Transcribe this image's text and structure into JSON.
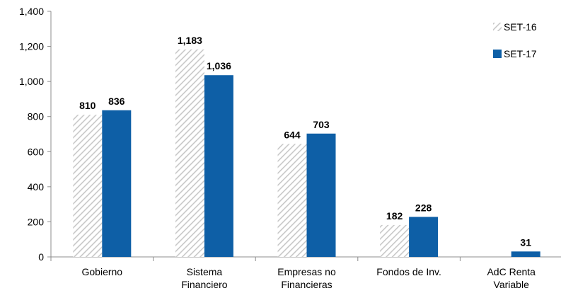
{
  "chart_data": {
    "type": "bar",
    "title": "",
    "xlabel": "",
    "ylabel": "",
    "ylim": [
      0,
      1400
    ],
    "yticks": [
      0,
      200,
      400,
      600,
      800,
      1000,
      1200,
      1400
    ],
    "ytick_labels": [
      "0",
      "200",
      "400",
      "600",
      "800",
      "1,000",
      "1,200",
      "1,400"
    ],
    "grid": false,
    "legend_position": "top-right",
    "categories": [
      [
        "Gobierno"
      ],
      [
        "Sistema",
        "Financiero"
      ],
      [
        "Empresas no",
        "Financieras"
      ],
      [
        "Fondos de Inv."
      ],
      [
        "AdC Renta",
        "Variable"
      ]
    ],
    "series": [
      {
        "name": "SET-16",
        "style": "hatched",
        "color": "#c8c8c8",
        "values": [
          810,
          1183,
          644,
          182,
          null
        ],
        "labels": [
          "810",
          "1,183",
          "644",
          "182",
          ""
        ]
      },
      {
        "name": "SET-17",
        "style": "solid",
        "color": "#0e5fa6",
        "values": [
          836,
          1036,
          703,
          228,
          31
        ],
        "labels": [
          "836",
          "1,036",
          "703",
          "228",
          "31"
        ]
      }
    ]
  }
}
